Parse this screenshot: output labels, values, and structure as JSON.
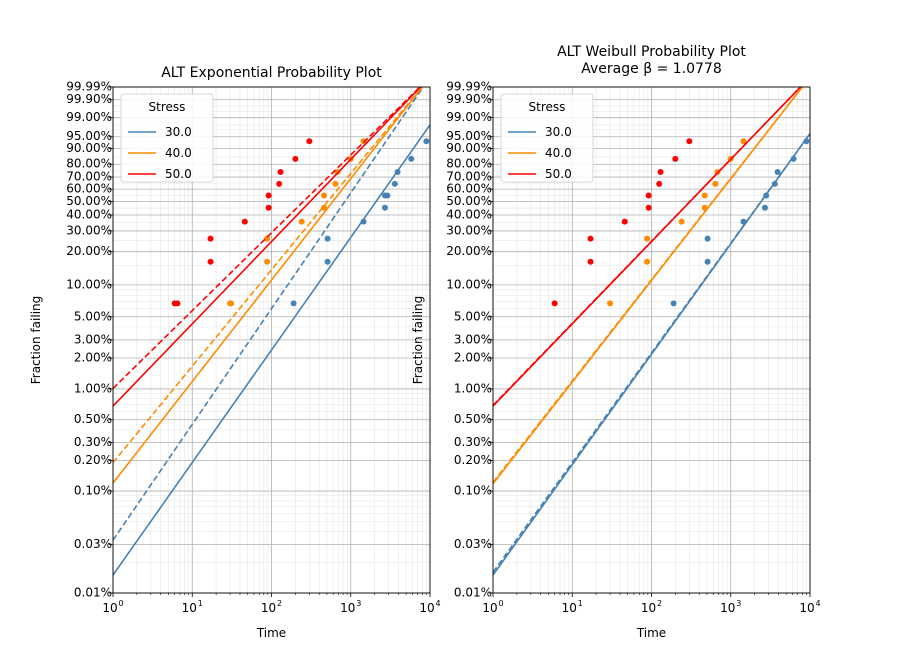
{
  "chart_data": [
    {
      "type": "line",
      "title": "ALT Exponential Probability Plot",
      "subtitle": "",
      "xlabel": "Time",
      "ylabel": "Fraction failing",
      "xscale": "log",
      "yscale": "exponential probability",
      "xlim": [
        1,
        10000
      ],
      "ylim": [
        0.0001,
        0.9999
      ],
      "grid": true,
      "legend_title": "Stress",
      "legend_position": "top-left",
      "series": [
        {
          "name": "30.0",
          "color": "#4682b4",
          "points": [
            [
              190,
              0.067
            ],
            [
              510,
              0.163
            ],
            [
              510,
              0.259
            ],
            [
              1450,
              0.356
            ],
            [
              2700,
              0.452
            ],
            [
              2700,
              0.548
            ],
            [
              2900,
              0.548
            ],
            [
              3600,
              0.644
            ],
            [
              3900,
              0.741
            ],
            [
              5800,
              0.837
            ],
            [
              9000,
              0.933
            ]
          ],
          "fit_solid": [
            [
              1,
              0.00015
            ],
            [
              10000,
              0.98
            ]
          ],
          "fit_dashed": [
            [
              1,
              0.00033
            ],
            [
              10000,
              1.0
            ]
          ]
        },
        {
          "name": "40.0",
          "color": "#ff8c00",
          "points": [
            [
              30,
              0.067
            ],
            [
              31,
              0.067
            ],
            [
              88,
              0.163
            ],
            [
              88,
              0.259
            ],
            [
              240,
              0.356
            ],
            [
              460,
              0.452
            ],
            [
              460,
              0.548
            ],
            [
              640,
              0.644
            ],
            [
              680,
              0.741
            ],
            [
              1000,
              0.837
            ],
            [
              1450,
              0.933
            ]
          ],
          "fit_solid": [
            [
              1,
              0.0012
            ],
            [
              10000,
              1.0
            ]
          ],
          "fit_dashed": [
            [
              1,
              0.0019
            ],
            [
              10000,
              1.0
            ]
          ]
        },
        {
          "name": "50.0",
          "color": "#ff0000",
          "points": [
            [
              6,
              0.067
            ],
            [
              6.5,
              0.067
            ],
            [
              17,
              0.163
            ],
            [
              17,
              0.259
            ],
            [
              46,
              0.356
            ],
            [
              92,
              0.452
            ],
            [
              92,
              0.548
            ],
            [
              125,
              0.644
            ],
            [
              130,
              0.741
            ],
            [
              200,
              0.837
            ],
            [
              300,
              0.933
            ]
          ],
          "fit_solid": [
            [
              1,
              0.0068
            ],
            [
              10000,
              1.0
            ]
          ],
          "fit_dashed": [
            [
              1,
              0.0101
            ],
            [
              10000,
              1.0
            ]
          ]
        }
      ]
    },
    {
      "type": "line",
      "title": "ALT Weibull Probability Plot",
      "subtitle": "Average β = 1.0778",
      "xlabel": "Time",
      "ylabel": "Fraction failing",
      "xscale": "log",
      "yscale": "weibull probability",
      "xlim": [
        1,
        10000
      ],
      "ylim": [
        0.0001,
        0.9999
      ],
      "grid": true,
      "legend_title": "Stress",
      "legend_position": "top-left",
      "series": [
        {
          "name": "30.0",
          "color": "#4682b4",
          "points": [
            [
              190,
              0.067
            ],
            [
              510,
              0.163
            ],
            [
              510,
              0.259
            ],
            [
              1450,
              0.356
            ],
            [
              2700,
              0.452
            ],
            [
              2800,
              0.548
            ],
            [
              3600,
              0.644
            ],
            [
              3900,
              0.741
            ],
            [
              6200,
              0.837
            ],
            [
              9000,
              0.933
            ]
          ],
          "fit_solid": [
            [
              1,
              0.00015
            ],
            [
              10000,
              0.96
            ]
          ],
          "fit_dashed": [
            [
              1,
              0.00016
            ],
            [
              10000,
              0.96
            ]
          ]
        },
        {
          "name": "40.0",
          "color": "#ff8c00",
          "points": [
            [
              30,
              0.067
            ],
            [
              88,
              0.163
            ],
            [
              88,
              0.259
            ],
            [
              240,
              0.356
            ],
            [
              470,
              0.452
            ],
            [
              470,
              0.548
            ],
            [
              640,
              0.644
            ],
            [
              680,
              0.741
            ],
            [
              1000,
              0.837
            ],
            [
              1450,
              0.933
            ]
          ],
          "fit_solid": [
            [
              1,
              0.00118
            ],
            [
              10000,
              1.0
            ]
          ],
          "fit_dashed": [
            [
              1,
              0.00122
            ],
            [
              10000,
              1.0
            ]
          ]
        },
        {
          "name": "50.0",
          "color": "#ff0000",
          "points": [
            [
              6,
              0.067
            ],
            [
              17,
              0.163
            ],
            [
              17,
              0.259
            ],
            [
              46,
              0.356
            ],
            [
              92,
              0.452
            ],
            [
              92,
              0.548
            ],
            [
              125,
              0.644
            ],
            [
              130,
              0.741
            ],
            [
              200,
              0.837
            ],
            [
              300,
              0.933
            ]
          ],
          "fit_solid": [
            [
              1,
              0.0068
            ],
            [
              10000,
              1.0
            ]
          ],
          "fit_dashed": [
            [
              1,
              0.0069
            ],
            [
              10000,
              1.0
            ]
          ]
        }
      ]
    }
  ],
  "ytick_labels": [
    {
      "v": 0.0001,
      "label": "0.01%"
    },
    {
      "v": 0.0003,
      "label": "0.03%"
    },
    {
      "v": 0.001,
      "label": "0.10%"
    },
    {
      "v": 0.002,
      "label": "0.20%"
    },
    {
      "v": 0.003,
      "label": "0.30%"
    },
    {
      "v": 0.005,
      "label": "0.50%"
    },
    {
      "v": 0.01,
      "label": "1.00%"
    },
    {
      "v": 0.02,
      "label": "2.00%"
    },
    {
      "v": 0.03,
      "label": "3.00%"
    },
    {
      "v": 0.05,
      "label": "5.00%"
    },
    {
      "v": 0.1,
      "label": "10.00%"
    },
    {
      "v": 0.2,
      "label": "20.00%"
    },
    {
      "v": 0.3,
      "label": "30.00%"
    },
    {
      "v": 0.4,
      "label": "40.00%"
    },
    {
      "v": 0.5,
      "label": "50.00%"
    },
    {
      "v": 0.6,
      "label": "60.00%"
    },
    {
      "v": 0.7,
      "label": "70.00%"
    },
    {
      "v": 0.8,
      "label": "80.00%"
    },
    {
      "v": 0.9,
      "label": "90.00%"
    },
    {
      "v": 0.95,
      "label": "95.00%"
    },
    {
      "v": 0.99,
      "label": "99.00%"
    },
    {
      "v": 0.999,
      "label": "99.90%"
    },
    {
      "v": 0.9999,
      "label": "99.99%"
    }
  ],
  "xtick_labels": [
    {
      "v": 1,
      "base": "10",
      "exp": "0"
    },
    {
      "v": 10,
      "base": "10",
      "exp": "1"
    },
    {
      "v": 100,
      "base": "10",
      "exp": "2"
    },
    {
      "v": 1000,
      "base": "10",
      "exp": "3"
    },
    {
      "v": 10000,
      "base": "10",
      "exp": "4"
    }
  ]
}
